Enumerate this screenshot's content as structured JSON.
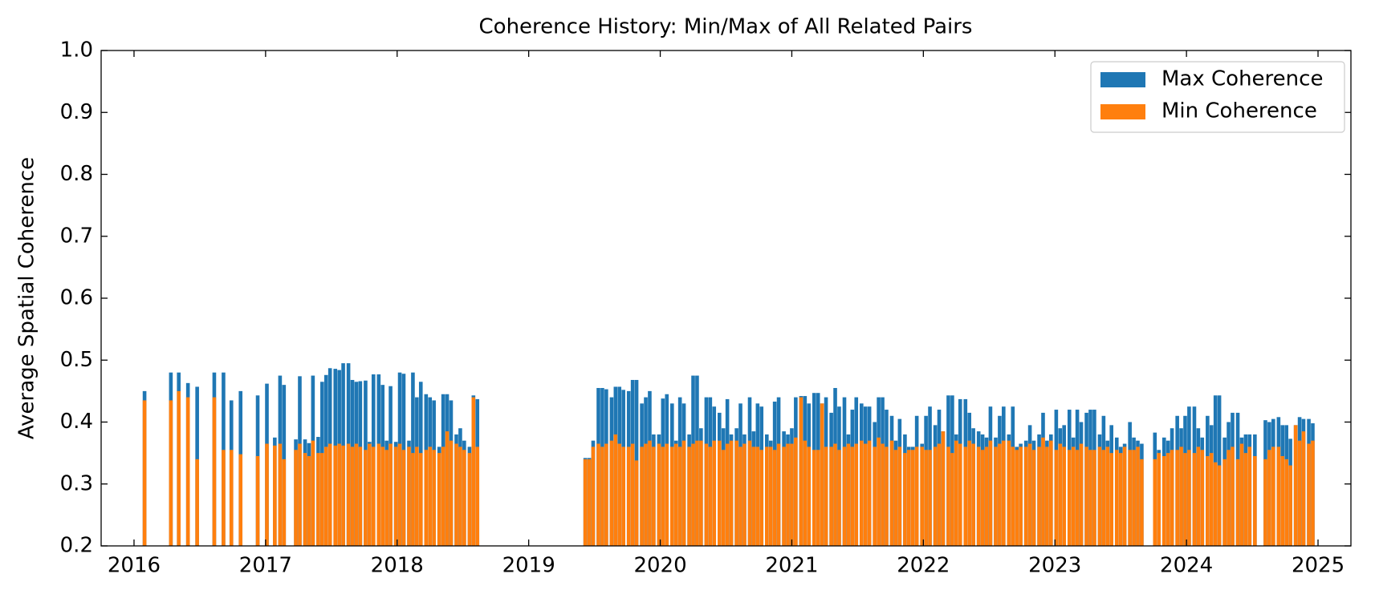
{
  "chart_data": {
    "type": "bar",
    "title": "Coherence History: Min/Max of All Related Pairs",
    "ylabel": "Average Spatial Coherence",
    "xlim": [
      2015.75,
      2025.25
    ],
    "xticks": [
      2016,
      2017,
      2018,
      2019,
      2020,
      2021,
      2022,
      2023,
      2024,
      2025
    ],
    "ylim": [
      0.2,
      1.0
    ],
    "yticks": [
      0.2,
      0.3,
      0.4,
      0.5,
      0.6,
      0.7,
      0.8,
      0.9,
      {
        "value": 1,
        "label": "1.0"
      }
    ],
    "legend": "upper right",
    "x": [
      2016.08,
      2016.28,
      2016.34,
      2016.41,
      2016.48,
      2016.61,
      2016.68,
      2016.74,
      2016.81,
      2016.94,
      2017.01,
      2017.07,
      2017.11,
      2017.14,
      2017.23,
      2017.26,
      2017.3,
      2017.33,
      2017.36,
      2017.4,
      2017.43,
      2017.46,
      2017.49,
      2017.53,
      2017.56,
      2017.59,
      2017.63,
      2017.66,
      2017.69,
      2017.72,
      2017.76,
      2017.79,
      2017.82,
      2017.86,
      2017.89,
      2017.92,
      2017.95,
      2017.99,
      2018.02,
      2018.05,
      2018.09,
      2018.12,
      2018.15,
      2018.18,
      2018.22,
      2018.25,
      2018.28,
      2018.32,
      2018.35,
      2018.38,
      2018.41,
      2018.45,
      2018.48,
      2018.51,
      2018.55,
      2018.58,
      2018.61,
      2019.43,
      2019.46,
      2019.49,
      2019.53,
      2019.56,
      2019.59,
      2019.63,
      2019.66,
      2019.69,
      2019.72,
      2019.76,
      2019.79,
      2019.82,
      2019.86,
      2019.89,
      2019.92,
      2019.95,
      2019.99,
      2020.02,
      2020.05,
      2020.09,
      2020.12,
      2020.15,
      2020.18,
      2020.22,
      2020.25,
      2020.28,
      2020.31,
      2020.35,
      2020.38,
      2020.41,
      2020.45,
      2020.48,
      2020.51,
      2020.54,
      2020.58,
      2020.61,
      2020.64,
      2020.68,
      2020.71,
      2020.74,
      2020.77,
      2020.81,
      2020.84,
      2020.87,
      2020.9,
      2020.94,
      2020.97,
      2021.0,
      2021.03,
      2021.07,
      2021.1,
      2021.13,
      2021.17,
      2021.2,
      2021.23,
      2021.26,
      2021.3,
      2021.33,
      2021.36,
      2021.4,
      2021.43,
      2021.46,
      2021.49,
      2021.53,
      2021.56,
      2021.59,
      2021.63,
      2021.66,
      2021.69,
      2021.72,
      2021.76,
      2021.79,
      2021.82,
      2021.86,
      2021.89,
      2021.92,
      2021.95,
      2021.99,
      2022.02,
      2022.05,
      2022.09,
      2022.12,
      2022.15,
      2022.19,
      2022.22,
      2022.25,
      2022.28,
      2022.32,
      2022.35,
      2022.38,
      2022.42,
      2022.45,
      2022.48,
      2022.51,
      2022.55,
      2022.58,
      2022.61,
      2022.65,
      2022.68,
      2022.71,
      2022.74,
      2022.78,
      2022.81,
      2022.84,
      2022.88,
      2022.91,
      2022.94,
      2022.97,
      2023.01,
      2023.04,
      2023.07,
      2023.11,
      2023.14,
      2023.17,
      2023.2,
      2023.24,
      2023.27,
      2023.3,
      2023.34,
      2023.37,
      2023.4,
      2023.43,
      2023.47,
      2023.5,
      2023.53,
      2023.57,
      2023.6,
      2023.63,
      2023.66,
      2023.76,
      2023.79,
      2023.83,
      2023.86,
      2023.89,
      2023.93,
      2023.96,
      2023.99,
      2024.02,
      2024.06,
      2024.09,
      2024.12,
      2024.16,
      2024.19,
      2024.22,
      2024.25,
      2024.29,
      2024.32,
      2024.35,
      2024.39,
      2024.42,
      2024.45,
      2024.48,
      2024.52,
      2024.6,
      2024.63,
      2024.66,
      2024.7,
      2024.73,
      2024.76,
      2024.79,
      2024.83,
      2024.86,
      2024.89,
      2024.93,
      2024.96
    ],
    "series": [
      {
        "name": "Max Coherence",
        "color": "#1f77b4",
        "values": [
          0.45,
          0.48,
          0.48,
          0.463,
          0.457,
          0.48,
          0.48,
          0.435,
          0.45,
          0.443,
          0.462,
          0.375,
          0.475,
          0.46,
          0.372,
          0.474,
          0.372,
          0.366,
          0.475,
          0.376,
          0.465,
          0.476,
          0.487,
          0.486,
          0.484,
          0.495,
          0.495,
          0.468,
          0.465,
          0.466,
          0.467,
          0.368,
          0.477,
          0.477,
          0.46,
          0.37,
          0.458,
          0.368,
          0.48,
          0.478,
          0.37,
          0.48,
          0.44,
          0.465,
          0.445,
          0.44,
          0.435,
          0.36,
          0.445,
          0.445,
          0.435,
          0.38,
          0.39,
          0.37,
          0.36,
          0.443,
          0.437,
          0.342,
          0.342,
          0.37,
          0.455,
          0.455,
          0.453,
          0.44,
          0.457,
          0.457,
          0.452,
          0.45,
          0.468,
          0.468,
          0.43,
          0.44,
          0.45,
          0.38,
          0.38,
          0.438,
          0.445,
          0.43,
          0.37,
          0.44,
          0.43,
          0.38,
          0.475,
          0.475,
          0.39,
          0.44,
          0.44,
          0.425,
          0.415,
          0.39,
          0.437,
          0.38,
          0.39,
          0.43,
          0.38,
          0.44,
          0.385,
          0.43,
          0.425,
          0.38,
          0.37,
          0.433,
          0.44,
          0.385,
          0.38,
          0.39,
          0.44,
          0.442,
          0.442,
          0.43,
          0.447,
          0.447,
          0.43,
          0.44,
          0.415,
          0.455,
          0.425,
          0.44,
          0.38,
          0.42,
          0.44,
          0.43,
          0.425,
          0.425,
          0.4,
          0.44,
          0.44,
          0.42,
          0.41,
          0.37,
          0.405,
          0.38,
          0.36,
          0.36,
          0.41,
          0.365,
          0.41,
          0.425,
          0.395,
          0.42,
          0.385,
          0.443,
          0.443,
          0.38,
          0.437,
          0.437,
          0.415,
          0.39,
          0.385,
          0.38,
          0.375,
          0.425,
          0.375,
          0.41,
          0.425,
          0.38,
          0.425,
          0.36,
          0.365,
          0.37,
          0.395,
          0.37,
          0.38,
          0.415,
          0.37,
          0.38,
          0.42,
          0.39,
          0.395,
          0.42,
          0.375,
          0.42,
          0.4,
          0.415,
          0.42,
          0.42,
          0.38,
          0.41,
          0.37,
          0.395,
          0.375,
          0.36,
          0.365,
          0.4,
          0.375,
          0.37,
          0.365,
          0.383,
          0.355,
          0.375,
          0.37,
          0.39,
          0.41,
          0.39,
          0.41,
          0.425,
          0.425,
          0.39,
          0.375,
          0.41,
          0.395,
          0.443,
          0.443,
          0.375,
          0.4,
          0.415,
          0.415,
          0.375,
          0.38,
          0.38,
          0.38,
          0.403,
          0.4,
          0.405,
          0.408,
          0.395,
          0.395,
          0.373,
          0.395,
          0.408,
          0.405,
          0.405,
          0.398
        ]
      },
      {
        "name": "Min Coherence",
        "color": "#ff7f0e",
        "values": [
          0.435,
          0.435,
          0.45,
          0.44,
          0.34,
          0.44,
          0.355,
          0.355,
          0.348,
          0.345,
          0.365,
          0.362,
          0.365,
          0.34,
          0.355,
          0.365,
          0.35,
          0.345,
          0.37,
          0.35,
          0.35,
          0.36,
          0.365,
          0.362,
          0.365,
          0.362,
          0.365,
          0.36,
          0.365,
          0.36,
          0.355,
          0.365,
          0.36,
          0.365,
          0.36,
          0.355,
          0.365,
          0.36,
          0.365,
          0.355,
          0.36,
          0.35,
          0.36,
          0.35,
          0.355,
          0.36,
          0.355,
          0.35,
          0.36,
          0.385,
          0.37,
          0.365,
          0.36,
          0.355,
          0.35,
          0.44,
          0.36,
          0.34,
          0.34,
          0.36,
          0.365,
          0.36,
          0.365,
          0.37,
          0.38,
          0.365,
          0.36,
          0.36,
          0.365,
          0.338,
          0.36,
          0.365,
          0.37,
          0.36,
          0.365,
          0.36,
          0.365,
          0.36,
          0.365,
          0.36,
          0.37,
          0.36,
          0.365,
          0.37,
          0.37,
          0.365,
          0.36,
          0.37,
          0.37,
          0.355,
          0.365,
          0.37,
          0.37,
          0.36,
          0.365,
          0.37,
          0.36,
          0.36,
          0.355,
          0.36,
          0.36,
          0.355,
          0.365,
          0.36,
          0.365,
          0.365,
          0.375,
          0.44,
          0.37,
          0.36,
          0.355,
          0.355,
          0.43,
          0.36,
          0.36,
          0.365,
          0.355,
          0.36,
          0.365,
          0.36,
          0.365,
          0.37,
          0.365,
          0.37,
          0.36,
          0.375,
          0.365,
          0.36,
          0.37,
          0.355,
          0.36,
          0.35,
          0.355,
          0.355,
          0.36,
          0.36,
          0.355,
          0.355,
          0.36,
          0.365,
          0.385,
          0.36,
          0.35,
          0.37,
          0.365,
          0.36,
          0.37,
          0.365,
          0.36,
          0.355,
          0.36,
          0.37,
          0.36,
          0.365,
          0.37,
          0.37,
          0.36,
          0.355,
          0.36,
          0.36,
          0.365,
          0.355,
          0.36,
          0.375,
          0.36,
          0.37,
          0.355,
          0.365,
          0.36,
          0.355,
          0.36,
          0.355,
          0.365,
          0.36,
          0.355,
          0.355,
          0.36,
          0.355,
          0.36,
          0.35,
          0.355,
          0.35,
          0.36,
          0.355,
          0.355,
          0.36,
          0.34,
          0.34,
          0.35,
          0.345,
          0.35,
          0.355,
          0.355,
          0.36,
          0.35,
          0.355,
          0.35,
          0.36,
          0.355,
          0.345,
          0.35,
          0.335,
          0.33,
          0.34,
          0.355,
          0.36,
          0.34,
          0.365,
          0.35,
          0.36,
          0.345,
          0.34,
          0.355,
          0.36,
          0.36,
          0.345,
          0.34,
          0.33,
          0.395,
          0.37,
          0.385,
          0.365,
          0.37
        ]
      }
    ]
  }
}
